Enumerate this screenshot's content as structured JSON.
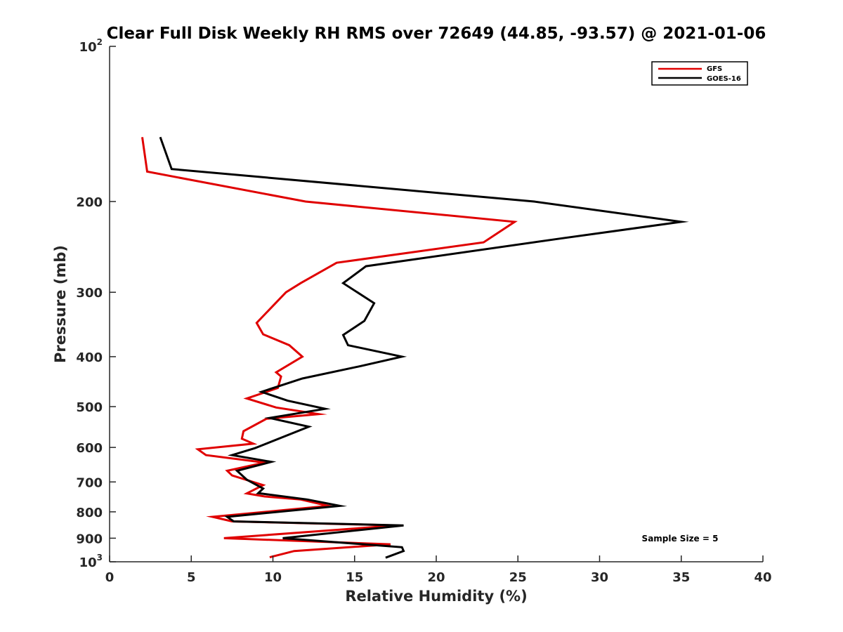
{
  "chart_data": {
    "type": "line",
    "orientation": "vertical-profile",
    "title": "Clear Full Disk Weekly RH RMS over 72649 (44.85, -93.57) @ 2021-01-06",
    "xlabel": "Relative Humidity (%)",
    "ylabel": "Pressure (mb)",
    "xlim": [
      0,
      40
    ],
    "ylim": [
      100,
      1000
    ],
    "y_scale": "log",
    "y_reversed": true,
    "grid": false,
    "legend_position": "top-right",
    "x_ticks": [
      "0",
      "5",
      "10",
      "15",
      "20",
      "25",
      "30",
      "35",
      "40"
    ],
    "y_ticks": [
      {
        "value": 100,
        "base": "10",
        "exp": "2"
      },
      {
        "value": 200,
        "label": "200"
      },
      {
        "value": 300,
        "label": "300"
      },
      {
        "value": 400,
        "label": "400"
      },
      {
        "value": 500,
        "label": "500"
      },
      {
        "value": 600,
        "label": "600"
      },
      {
        "value": 700,
        "label": "700"
      },
      {
        "value": 800,
        "label": "800"
      },
      {
        "value": 900,
        "label": "900"
      },
      {
        "value": 1000,
        "base": "10",
        "exp": "3"
      }
    ],
    "annotation": "Sample Size = 5",
    "series": [
      {
        "name": "GFS",
        "color": "#e00000",
        "points": [
          [
            2.0,
            150
          ],
          [
            2.3,
            175
          ],
          [
            12.0,
            200
          ],
          [
            24.8,
            219
          ],
          [
            22.9,
            240
          ],
          [
            13.9,
            263
          ],
          [
            11.7,
            288
          ],
          [
            10.8,
            300
          ],
          [
            9.0,
            344
          ],
          [
            9.4,
            362
          ],
          [
            11.0,
            380
          ],
          [
            11.8,
            400
          ],
          [
            10.2,
            429
          ],
          [
            10.5,
            437
          ],
          [
            10.3,
            460
          ],
          [
            8.4,
            482
          ],
          [
            10.2,
            502
          ],
          [
            12.8,
            517
          ],
          [
            9.6,
            528
          ],
          [
            8.2,
            558
          ],
          [
            8.1,
            577
          ],
          [
            8.8,
            590
          ],
          [
            5.4,
            605
          ],
          [
            5.9,
            621
          ],
          [
            9.5,
            642
          ],
          [
            7.2,
            666
          ],
          [
            7.5,
            680
          ],
          [
            9.4,
            710
          ],
          [
            8.4,
            737
          ],
          [
            9.5,
            747
          ],
          [
            11.7,
            757
          ],
          [
            13.4,
            779
          ],
          [
            6.3,
            818
          ],
          [
            7.5,
            835
          ],
          [
            17.6,
            850
          ],
          [
            7.0,
            900
          ],
          [
            17.2,
            925
          ],
          [
            11.3,
            953
          ],
          [
            9.8,
            980
          ]
        ]
      },
      {
        "name": "GOES-16",
        "color": "#000000",
        "points": [
          [
            3.1,
            150
          ],
          [
            3.8,
            173
          ],
          [
            26.0,
            200
          ],
          [
            35.0,
            219
          ],
          [
            27.6,
            236
          ],
          [
            15.7,
            267
          ],
          [
            14.3,
            288
          ],
          [
            16.2,
            315
          ],
          [
            15.6,
            341
          ],
          [
            14.3,
            363
          ],
          [
            14.6,
            380
          ],
          [
            17.9,
            400
          ],
          [
            15.4,
            417
          ],
          [
            11.8,
            441
          ],
          [
            9.3,
            468
          ],
          [
            10.9,
            487
          ],
          [
            13.2,
            505
          ],
          [
            9.8,
            526
          ],
          [
            12.2,
            547
          ],
          [
            8.9,
            602
          ],
          [
            7.5,
            621
          ],
          [
            9.9,
            640
          ],
          [
            7.8,
            666
          ],
          [
            8.4,
            693
          ],
          [
            9.4,
            721
          ],
          [
            9.1,
            736
          ],
          [
            12.1,
            757
          ],
          [
            14.1,
            779
          ],
          [
            7.2,
            818
          ],
          [
            7.6,
            835
          ],
          [
            18.0,
            850
          ],
          [
            10.6,
            900
          ],
          [
            17.9,
            937
          ],
          [
            18.0,
            953
          ],
          [
            16.9,
            982
          ]
        ]
      }
    ]
  }
}
